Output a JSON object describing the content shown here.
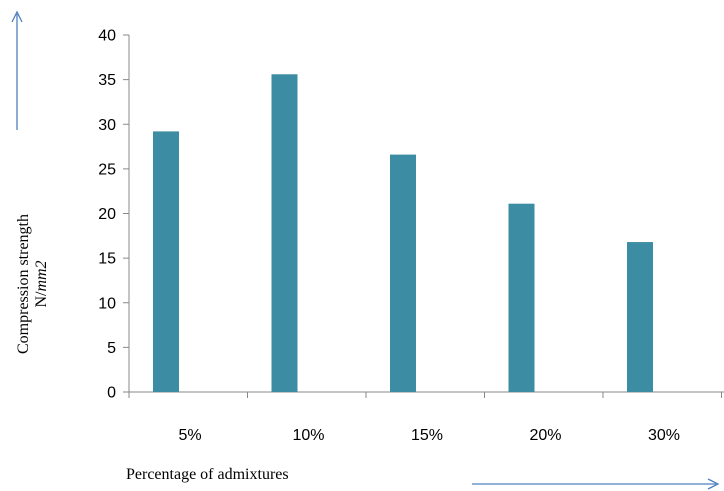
{
  "chart_data": {
    "type": "bar",
    "categories": [
      "5%",
      "10%",
      "15%",
      "20%",
      "30%"
    ],
    "values": [
      29.2,
      35.6,
      26.6,
      21.1,
      16.8
    ],
    "xlabel": "Percentage of admixtures",
    "ylabel_line1": "Compression strength",
    "ylabel_line2": "N/mm2",
    "ylim": [
      0,
      40
    ],
    "yticks": [
      0,
      5,
      10,
      15,
      20,
      25,
      30,
      35,
      40
    ],
    "grid": false,
    "legend": "none",
    "bar_color": "#3C8DA3",
    "arrow_color": "#4F81BD"
  }
}
